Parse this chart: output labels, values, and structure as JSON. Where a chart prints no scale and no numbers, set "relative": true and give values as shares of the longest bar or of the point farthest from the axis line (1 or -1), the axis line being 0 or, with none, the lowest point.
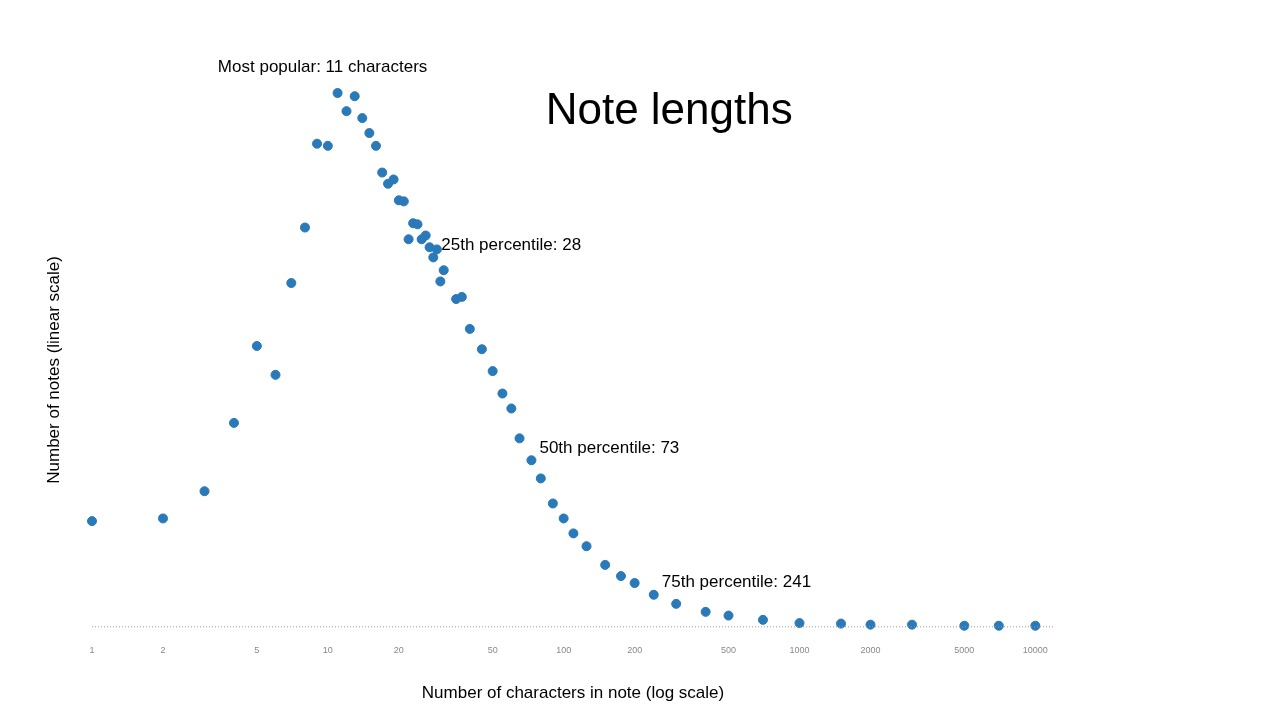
{
  "chart_data": {
    "type": "scatter",
    "title": "Note lengths",
    "xlabel": "Number of characters in note (log scale)",
    "ylabel": "Number of notes (linear scale)",
    "relative": true,
    "log": "x",
    "grid": false,
    "legend": false,
    "marker": "circle",
    "xlim": [
      1,
      12000
    ],
    "xticks": [
      1,
      2,
      5,
      10,
      20,
      50,
      100,
      200,
      500,
      1000,
      2000,
      5000,
      10000
    ],
    "series": [
      {
        "color": "#2a79b8",
        "x": [
          1,
          2,
          3,
          4,
          5,
          6,
          7,
          8,
          9,
          10,
          11,
          12,
          13,
          14,
          15,
          16,
          17,
          18,
          19,
          20,
          21,
          22,
          23,
          24,
          25,
          26,
          27,
          28,
          29,
          30,
          31,
          35,
          37,
          40,
          45,
          50,
          55,
          60,
          65,
          73,
          80,
          90,
          100,
          110,
          125,
          150,
          175,
          200,
          241,
          300,
          400,
          500,
          700,
          1000,
          1500,
          2000,
          3000,
          5000,
          7000,
          10000
        ],
        "values": [
          0.198,
          0.203,
          0.254,
          0.382,
          0.526,
          0.472,
          0.644,
          0.748,
          0.905,
          0.901,
          1.0,
          0.966,
          0.994,
          0.953,
          0.925,
          0.901,
          0.851,
          0.83,
          0.838,
          0.799,
          0.797,
          0.726,
          0.756,
          0.754,
          0.726,
          0.733,
          0.711,
          0.692,
          0.707,
          0.647,
          0.668,
          0.614,
          0.618,
          0.558,
          0.52,
          0.479,
          0.437,
          0.409,
          0.353,
          0.312,
          0.278,
          0.231,
          0.203,
          0.175,
          0.151,
          0.116,
          0.095,
          0.082,
          0.06,
          0.043,
          0.028,
          0.021,
          0.013,
          0.007,
          0.006,
          0.004,
          0.004,
          0.002,
          0.002,
          0.002
        ]
      }
    ],
    "annotations": [
      {
        "text": "Most popular: 11 characters",
        "x": 11,
        "y": 1.0
      },
      {
        "text": "25th percentile: 28",
        "x": 28,
        "y": 0.692
      },
      {
        "text": "50th percentile: 73",
        "x": 73,
        "y": 0.312
      },
      {
        "text": "75th percentile: 241",
        "x": 241,
        "y": 0.06
      }
    ]
  }
}
